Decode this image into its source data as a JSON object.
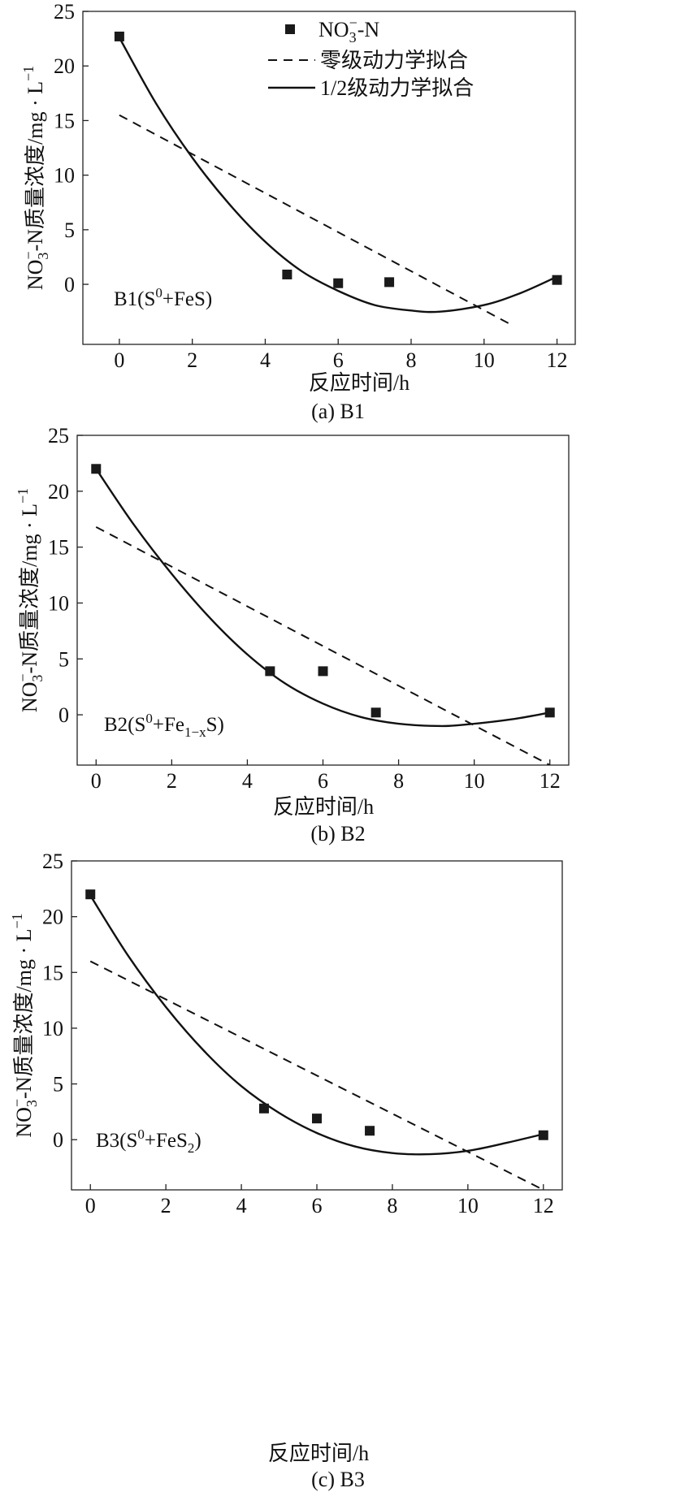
{
  "figure": {
    "legend": {
      "entries": [
        {
          "kind": "marker",
          "label_main": "NO",
          "label_sub": "3",
          "label_sup": "−",
          "label_tail": "-N"
        },
        {
          "kind": "dashed",
          "label": "零级动力学拟合"
        },
        {
          "kind": "solid",
          "label": "1/2级动力学拟合"
        }
      ]
    }
  },
  "chart_data": [
    {
      "type": "scatter",
      "caption": "(a) B1",
      "annotation": {
        "main": "B1(S",
        "sup": "0",
        "rest": "+FeS)"
      },
      "xlabel": "反应时间/h",
      "ylabel": {
        "part1": "NO",
        "sub": "3",
        "sup": "−",
        "part2": "-N质量浓度/mg · L",
        "unit_sup": "−1"
      },
      "xlim": [
        -1,
        12.5
      ],
      "ylim": [
        -5.5,
        25
      ],
      "x_ticks": [
        0,
        2,
        4,
        6,
        8,
        10,
        12
      ],
      "y_ticks": [
        0,
        5,
        10,
        15,
        20,
        25
      ],
      "series": [
        {
          "name": "NO3--N",
          "kind": "points",
          "x": [
            0,
            4.6,
            6,
            7.4,
            12
          ],
          "y": [
            22.7,
            0.9,
            0.1,
            0.2,
            0.4
          ]
        },
        {
          "name": "零级动力学拟合",
          "kind": "dashed-line",
          "x": [
            0,
            10.8
          ],
          "y": [
            15.5,
            -3.8
          ]
        },
        {
          "name": "1/2级动力学拟合",
          "kind": "curve",
          "x": [
            0,
            1,
            2,
            3,
            4,
            5,
            6,
            7,
            8,
            8.8,
            10,
            11,
            12
          ],
          "y": [
            22.6,
            16.6,
            11.6,
            7.4,
            3.9,
            1.2,
            -0.6,
            -1.9,
            -2.4,
            -2.5,
            -1.9,
            -0.8,
            0.7
          ]
        }
      ]
    },
    {
      "type": "scatter",
      "caption": "(b) B2",
      "annotation": {
        "main": "B2(S",
        "sup": "0",
        "rest_main": "+Fe",
        "rest_sub": "1−x",
        "rest_tail": "S)"
      },
      "xlabel": "反应时间/h",
      "ylabel": {
        "part1": "NO",
        "sub": "3",
        "sup": "−",
        "part2": "-N质量浓度/mg · L",
        "unit_sup": "−1"
      },
      "xlim": [
        -0.5,
        12.5
      ],
      "ylim": [
        -4.5,
        25
      ],
      "x_ticks": [
        0,
        2,
        4,
        6,
        8,
        10,
        12
      ],
      "y_ticks": [
        0,
        5,
        10,
        15,
        20,
        25
      ],
      "series": [
        {
          "name": "NO3--N",
          "kind": "points",
          "x": [
            0,
            4.6,
            6,
            7.4,
            12
          ],
          "y": [
            22.0,
            3.9,
            3.9,
            0.2,
            0.2
          ]
        },
        {
          "name": "零级动力学拟合",
          "kind": "dashed-line",
          "x": [
            0,
            12
          ],
          "y": [
            16.8,
            -4.5
          ]
        },
        {
          "name": "1/2级动力学拟合",
          "kind": "curve",
          "x": [
            0,
            1,
            2,
            3,
            4,
            5,
            6,
            7,
            8,
            9,
            9.7,
            11,
            12
          ],
          "y": [
            22.0,
            17.0,
            12.6,
            8.7,
            5.4,
            2.8,
            1.0,
            -0.2,
            -0.8,
            -1.0,
            -0.9,
            -0.4,
            0.2
          ]
        }
      ]
    },
    {
      "type": "scatter",
      "caption": "(c) B3",
      "annotation": {
        "main": "B3(S",
        "sup": "0",
        "rest_main": "+FeS",
        "rest_sub": "2",
        "rest_tail": ")"
      },
      "xlabel": "反应时间/h",
      "ylabel": {
        "part1": "NO",
        "sub": "3",
        "sup": "−",
        "part2": "-N质量浓度/mg · L",
        "unit_sup": "−1"
      },
      "xlim": [
        -0.5,
        12.5
      ],
      "ylim": [
        -4.5,
        25
      ],
      "x_ticks": [
        0,
        2,
        4,
        6,
        8,
        10,
        12
      ],
      "y_ticks": [
        0,
        5,
        10,
        15,
        20,
        25
      ],
      "series": [
        {
          "name": "NO3--N",
          "kind": "points",
          "x": [
            0,
            4.6,
            6,
            7.4,
            12
          ],
          "y": [
            22.0,
            2.8,
            1.9,
            0.8,
            0.4
          ]
        },
        {
          "name": "零级动力学拟合",
          "kind": "dashed-line",
          "x": [
            0,
            12
          ],
          "y": [
            16.0,
            -4.5
          ]
        },
        {
          "name": "1/2级动力学拟合",
          "kind": "curve",
          "x": [
            0,
            1,
            2,
            3,
            4,
            5,
            6,
            7,
            8,
            9,
            10,
            11,
            12
          ],
          "y": [
            21.9,
            16.5,
            11.9,
            8.0,
            4.8,
            2.4,
            0.6,
            -0.6,
            -1.2,
            -1.3,
            -1.0,
            -0.3,
            0.5
          ]
        }
      ]
    }
  ]
}
